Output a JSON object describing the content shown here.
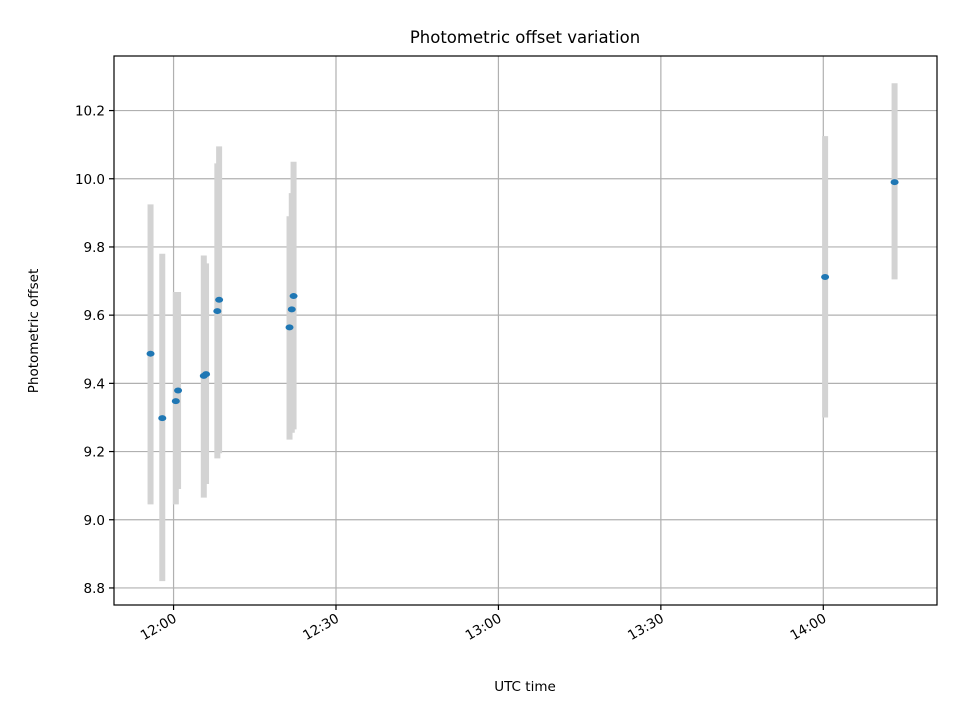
{
  "chart_data": {
    "type": "scatter",
    "title": "Photometric offset variation",
    "xlabel": "UTC time",
    "ylabel": "Photometric offset",
    "x_unit": "UTC time (HH:MM)",
    "xlim": [
      "11:49",
      "14:21"
    ],
    "ylim": [
      8.75,
      10.36
    ],
    "x_ticks": [
      "12:00",
      "12:30",
      "13:00",
      "13:30",
      "14:00"
    ],
    "y_ticks": [
      8.8,
      9.0,
      9.2,
      9.4,
      9.6,
      9.8,
      10.0,
      10.2
    ],
    "grid": true,
    "errorbar_color": "#d3d3d3",
    "marker_color": "#1f77b4",
    "points": [
      {
        "time": "11:55:45",
        "y": 9.487,
        "ylow": 9.045,
        "yhigh": 9.925
      },
      {
        "time": "11:57:55",
        "y": 9.298,
        "ylow": 8.82,
        "yhigh": 9.78
      },
      {
        "time": "12:00:25",
        "y": 9.348,
        "ylow": 9.045,
        "yhigh": 9.668
      },
      {
        "time": "12:00:50",
        "y": 9.379,
        "ylow": 9.09,
        "yhigh": 9.668
      },
      {
        "time": "12:05:35",
        "y": 9.422,
        "ylow": 9.065,
        "yhigh": 9.775
      },
      {
        "time": "12:06:00",
        "y": 9.427,
        "ylow": 9.105,
        "yhigh": 9.752
      },
      {
        "time": "12:08:05",
        "y": 9.612,
        "ylow": 9.18,
        "yhigh": 10.045
      },
      {
        "time": "12:08:25",
        "y": 9.645,
        "ylow": 9.195,
        "yhigh": 10.095
      },
      {
        "time": "12:21:25",
        "y": 9.564,
        "ylow": 9.235,
        "yhigh": 9.89
      },
      {
        "time": "12:21:50",
        "y": 9.617,
        "ylow": 9.255,
        "yhigh": 9.958
      },
      {
        "time": "12:22:10",
        "y": 9.656,
        "ylow": 9.265,
        "yhigh": 10.05
      },
      {
        "time": "14:00:20",
        "y": 9.712,
        "ylow": 9.3,
        "yhigh": 10.125
      },
      {
        "time": "14:13:10",
        "y": 9.99,
        "ylow": 9.705,
        "yhigh": 10.28
      }
    ]
  }
}
